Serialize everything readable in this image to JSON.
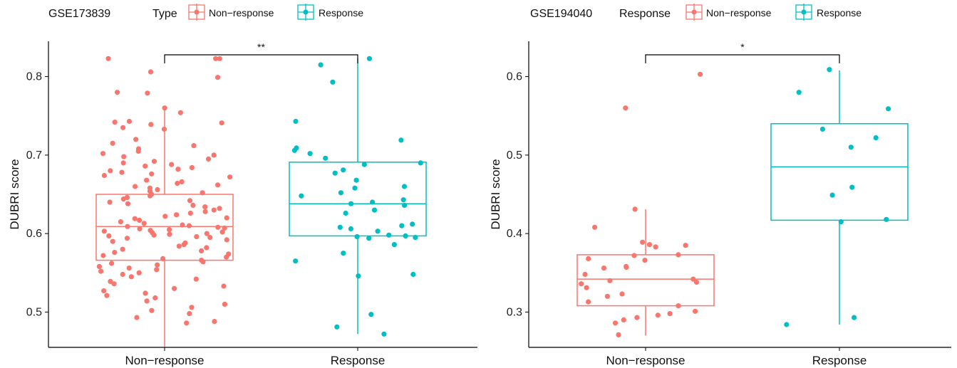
{
  "colors": {
    "nonresponse": "#F8766D",
    "response": "#00BFC4",
    "axis": "#000000"
  },
  "chart_data": [
    {
      "type": "box",
      "title": "GSE173839",
      "legend_title": "Type",
      "legend_placement": "top",
      "ylabel": "DUBRI score",
      "ylim": [
        0.455,
        0.845
      ],
      "yticks": [
        0.5,
        0.6,
        0.7,
        0.8
      ],
      "ytick_labels": [
        "0.5",
        "0.6",
        "0.7",
        "0.8"
      ],
      "categories": [
        "Non−response",
        "Response"
      ],
      "legend_labels": [
        "Non−response",
        "Response"
      ],
      "significance": "**",
      "boxes": [
        {
          "min": 0.456,
          "q1": 0.566,
          "median": 0.609,
          "q3": 0.65,
          "max": 0.76
        },
        {
          "min": 0.472,
          "q1": 0.597,
          "median": 0.638,
          "q3": 0.691,
          "max": 0.823
        }
      ],
      "points": [
        [
          0.823,
          0.823,
          0.823,
          0.806,
          0.799,
          0.78,
          0.779,
          0.76,
          0.754,
          0.743,
          0.742,
          0.741,
          0.739,
          0.735,
          0.733,
          0.72,
          0.715,
          0.712,
          0.708,
          0.705,
          0.702,
          0.7,
          0.698,
          0.695,
          0.692,
          0.69,
          0.688,
          0.686,
          0.684,
          0.682,
          0.68,
          0.678,
          0.676,
          0.674,
          0.672,
          0.668,
          0.666,
          0.664,
          0.662,
          0.66,
          0.658,
          0.656,
          0.654,
          0.652,
          0.65,
          0.648,
          0.646,
          0.644,
          0.642,
          0.64,
          0.638,
          0.636,
          0.634,
          0.632,
          0.63,
          0.628,
          0.626,
          0.624,
          0.622,
          0.62,
          0.619,
          0.617,
          0.615,
          0.613,
          0.611,
          0.61,
          0.609,
          0.608,
          0.607,
          0.606,
          0.605,
          0.604,
          0.603,
          0.602,
          0.601,
          0.6,
          0.599,
          0.598,
          0.597,
          0.596,
          0.595,
          0.594,
          0.592,
          0.59,
          0.588,
          0.586,
          0.584,
          0.582,
          0.58,
          0.578,
          0.576,
          0.574,
          0.572,
          0.57,
          0.568,
          0.566,
          0.564,
          0.562,
          0.56,
          0.558,
          0.556,
          0.554,
          0.552,
          0.55,
          0.548,
          0.545,
          0.542,
          0.539,
          0.536,
          0.533,
          0.53,
          0.527,
          0.524,
          0.521,
          0.518,
          0.514,
          0.51,
          0.506,
          0.502,
          0.498,
          0.493,
          0.488,
          0.486
        ],
        [
          0.823,
          0.815,
          0.793,
          0.743,
          0.719,
          0.709,
          0.706,
          0.702,
          0.696,
          0.69,
          0.688,
          0.681,
          0.677,
          0.668,
          0.66,
          0.658,
          0.652,
          0.648,
          0.643,
          0.64,
          0.638,
          0.636,
          0.63,
          0.626,
          0.612,
          0.61,
          0.608,
          0.606,
          0.603,
          0.598,
          0.597,
          0.596,
          0.595,
          0.594,
          0.586,
          0.575,
          0.565,
          0.548,
          0.546,
          0.497,
          0.481,
          0.472
        ]
      ]
    },
    {
      "type": "box",
      "title": "GSE194040",
      "legend_title": "Response",
      "legend_placement": "top",
      "ylabel": "DUBRI score",
      "ylim": [
        0.255,
        0.645
      ],
      "yticks": [
        0.3,
        0.4,
        0.5,
        0.6
      ],
      "ytick_labels": [
        "0.3",
        "0.4",
        "0.5",
        "0.6"
      ],
      "categories": [
        "Non−response",
        "Response"
      ],
      "legend_labels": [
        "Non−response",
        "Response"
      ],
      "significance": "*",
      "boxes": [
        {
          "min": 0.27,
          "q1": 0.308,
          "median": 0.342,
          "q3": 0.373,
          "max": 0.431
        },
        {
          "min": 0.284,
          "q1": 0.417,
          "median": 0.485,
          "q3": 0.54,
          "max": 0.608
        }
      ],
      "points": [
        [
          0.603,
          0.56,
          0.431,
          0.408,
          0.389,
          0.386,
          0.385,
          0.383,
          0.373,
          0.372,
          0.368,
          0.366,
          0.358,
          0.357,
          0.356,
          0.348,
          0.342,
          0.34,
          0.338,
          0.336,
          0.331,
          0.323,
          0.32,
          0.313,
          0.308,
          0.301,
          0.298,
          0.296,
          0.293,
          0.29,
          0.286,
          0.271
        ],
        [
          0.609,
          0.58,
          0.559,
          0.533,
          0.522,
          0.51,
          0.459,
          0.449,
          0.418,
          0.415,
          0.293,
          0.284
        ]
      ]
    }
  ]
}
